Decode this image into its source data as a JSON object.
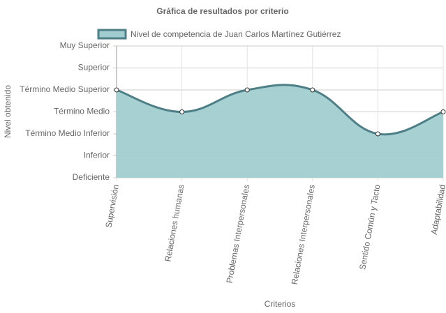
{
  "chart_data": {
    "type": "area",
    "title": "Gráfica de resultados por criterio",
    "x_label": "Criterios",
    "y_label": "Nivel obtenido",
    "categories": [
      "Supervisión",
      "Relaciones humanas",
      "Problemas Interpersonales",
      "Relaciones Interpersonales",
      "Sentido Común y Tacto",
      "Adaptabilidad"
    ],
    "series": [
      {
        "name": "Nivel de competencia de Juan Carlos Martínez Gutiérrez",
        "color": "#4f7f86",
        "fill": "#a1cdd0",
        "values": [
          4,
          3,
          4,
          4,
          2,
          3
        ]
      }
    ],
    "ylim": [
      0,
      6
    ],
    "yticks": [
      {
        "value": 0,
        "label": "Deficiente"
      },
      {
        "value": 1,
        "label": "Inferior"
      },
      {
        "value": 2,
        "label": "Término Medio Inferior"
      },
      {
        "value": 3,
        "label": "Término Medio"
      },
      {
        "value": 4,
        "label": "Término Medio Superior"
      },
      {
        "value": 5,
        "label": "Superior"
      },
      {
        "value": 6,
        "label": "Muy Superior"
      }
    ],
    "grid": true,
    "legend": "top"
  }
}
